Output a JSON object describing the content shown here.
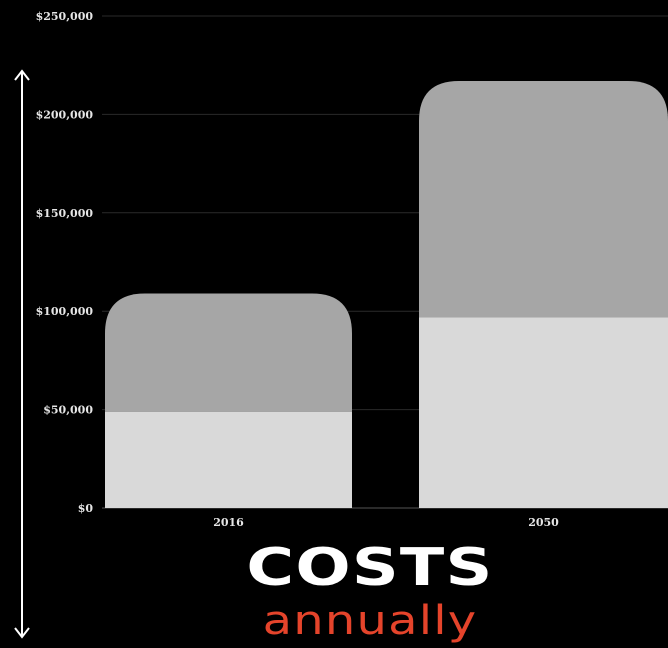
{
  "chart_data": {
    "type": "bar",
    "stacked": true,
    "categories": [
      "2016",
      "2050"
    ],
    "series": [
      {
        "values": [
          49000,
          97000
        ],
        "color": "#d9d9d9"
      },
      {
        "values": [
          60000,
          120000
        ],
        "color": "#a6a6a6"
      }
    ],
    "ylim": [
      0,
      250000
    ],
    "yticks": [
      0,
      50000,
      100000,
      150000,
      200000,
      250000
    ],
    "ytick_labels": [
      "$0",
      "$50,000",
      "$100,000",
      "$150,000",
      "$200,000",
      "$250,000"
    ],
    "grid": true,
    "title": "COSTS",
    "subtitle": "annually",
    "colors": {
      "background": "#000000",
      "grid": "#2a2a2a",
      "text": "#e6e6e6",
      "subtitle": "#e5442b"
    }
  }
}
